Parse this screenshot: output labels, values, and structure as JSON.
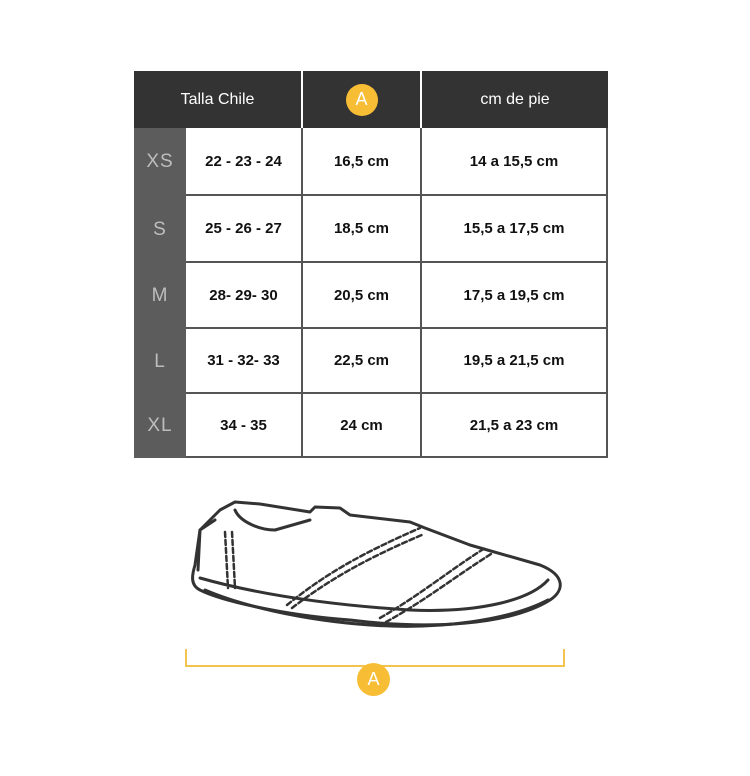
{
  "table": {
    "headers": [
      "Talla Chile",
      "A",
      "cm de pie"
    ],
    "rows": [
      {
        "size": "XS",
        "chile": "22 - 23 - 24",
        "a": "16,5 cm",
        "foot": "14 a 15,5 cm"
      },
      {
        "size": "S",
        "chile": "25 - 26 - 27",
        "a": "18,5 cm",
        "foot": "15,5 a 17,5 cm"
      },
      {
        "size": "M",
        "chile": "28- 29- 30",
        "a": "20,5 cm",
        "foot": "17,5 a 19,5 cm"
      },
      {
        "size": "L",
        "chile": "31 - 32- 33",
        "a": "22,5 cm",
        "foot": "19,5 a 21,5 cm"
      },
      {
        "size": "XL",
        "chile": "34 - 35",
        "a": "24 cm",
        "foot": "21,5 a 23 cm"
      }
    ]
  },
  "diagram": {
    "measure_label": "A",
    "accent_color": "#f7bd35",
    "icon": "slipper-outline"
  }
}
